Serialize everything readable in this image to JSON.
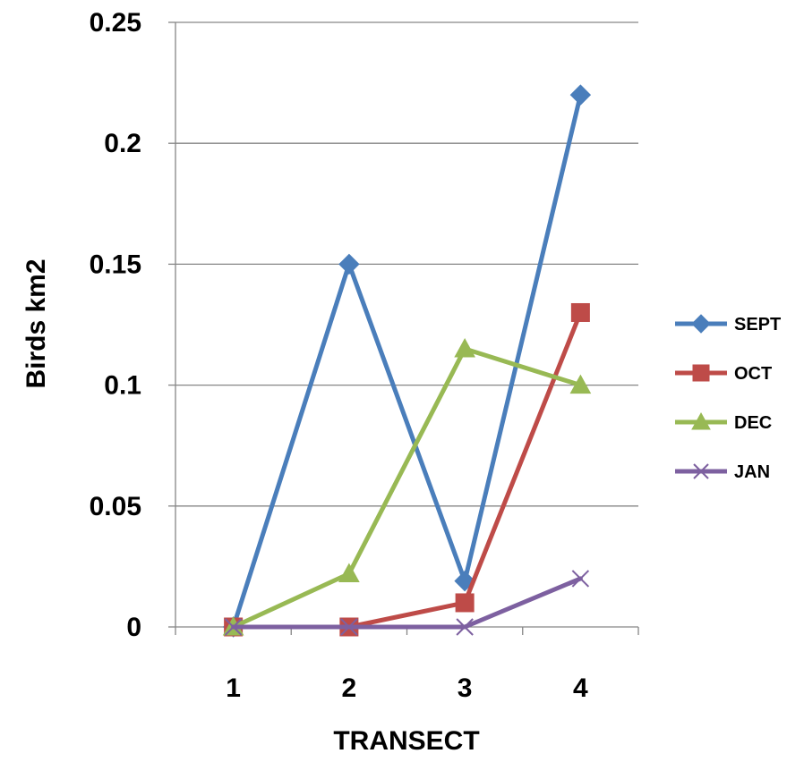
{
  "chart_data": {
    "type": "line",
    "x": [
      1,
      2,
      3,
      4
    ],
    "x_tick_labels": [
      "1",
      "2",
      "3",
      "4"
    ],
    "y_tick_labels": [
      "0",
      "0.05",
      "0.1",
      "0.15",
      "0.2",
      "0.25"
    ],
    "xlabel": "TRANSECT",
    "ylabel": "Birds km2",
    "ylim": [
      0,
      0.25
    ],
    "grid": "horizontal",
    "legend_position": "right",
    "series": [
      {
        "name": "SEPT",
        "values": [
          0,
          0.15,
          0.019,
          0.22
        ],
        "color": "#4a7ebb",
        "marker": "diamond"
      },
      {
        "name": "OCT",
        "values": [
          0,
          0,
          0.01,
          0.13
        ],
        "color": "#be4b48",
        "marker": "square"
      },
      {
        "name": "DEC",
        "values": [
          0,
          0.022,
          0.115,
          0.1
        ],
        "color": "#98b954",
        "marker": "triangle"
      },
      {
        "name": "JAN",
        "values": [
          0,
          0,
          0,
          0.02
        ],
        "color": "#7d60a0",
        "marker": "x"
      }
    ]
  }
}
